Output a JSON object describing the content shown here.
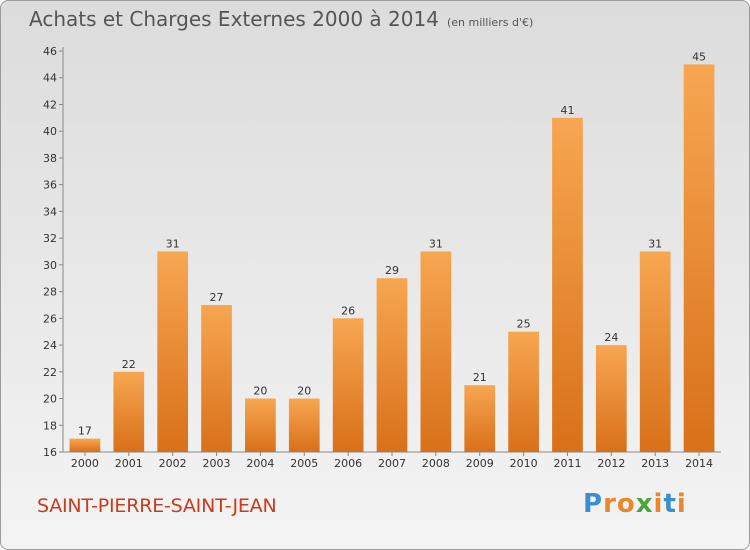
{
  "chart_data": {
    "type": "bar",
    "title": "Achats et Charges Externes 2000 à 2014",
    "subtitle": "(en milliers d'€)",
    "categories": [
      "2000",
      "2001",
      "2002",
      "2003",
      "2004",
      "2005",
      "2006",
      "2007",
      "2008",
      "2009",
      "2010",
      "2011",
      "2012",
      "2013",
      "2014"
    ],
    "values": [
      17,
      22,
      31,
      27,
      20,
      20,
      26,
      29,
      31,
      21,
      25,
      41,
      24,
      31,
      45
    ],
    "ylim": [
      16,
      46
    ],
    "yticks": [
      16,
      18,
      20,
      22,
      24,
      26,
      28,
      30,
      32,
      34,
      36,
      38,
      40,
      42,
      44,
      46
    ],
    "xlabel": "",
    "ylabel": "",
    "grid": false,
    "bar_color_top": "#f7a651",
    "bar_color_bottom": "#d9701a"
  },
  "footer": {
    "commune": "SAINT-PIERRE-SAINT-JEAN",
    "logo_letters": [
      "P",
      "r",
      "o",
      "x",
      "i",
      "t",
      "i"
    ],
    "logo_colors": [
      "#3a8fd0",
      "#e8882c",
      "#e8882c",
      "#4aa63c",
      "#e8882c",
      "#3a8fd0",
      "#e8882c"
    ]
  }
}
